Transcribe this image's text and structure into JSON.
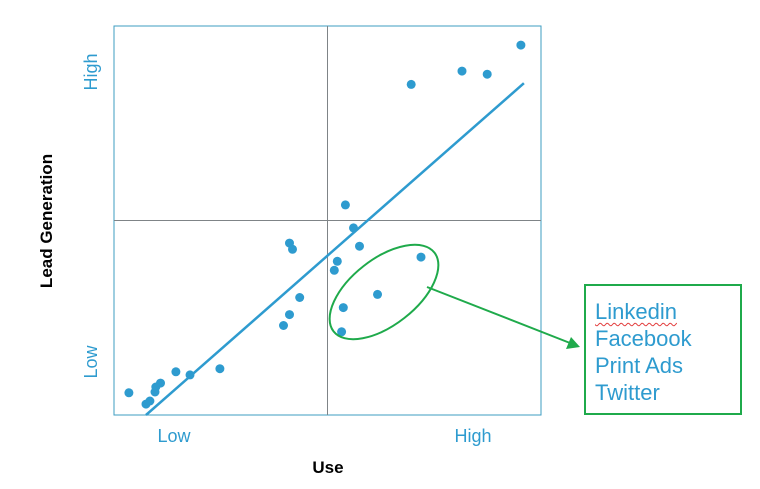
{
  "chart_data": {
    "type": "scatter",
    "title": "",
    "xlabel": "Use",
    "ylabel": "Lead Generation",
    "xlim": [
      0,
      100
    ],
    "ylim": [
      0,
      100
    ],
    "x_tick_labels": [
      "Low",
      "High"
    ],
    "y_tick_labels": [
      "Low",
      "High"
    ],
    "quadrant_split": {
      "x": 50,
      "y": 50
    },
    "grid": false,
    "points": [
      {
        "x": 3.5,
        "y": 5.7
      },
      {
        "x": 7.5,
        "y": 2.8
      },
      {
        "x": 8.4,
        "y": 3.6
      },
      {
        "x": 9.6,
        "y": 5.9
      },
      {
        "x": 9.8,
        "y": 7.2
      },
      {
        "x": 10.9,
        "y": 8.2
      },
      {
        "x": 14.5,
        "y": 11.1
      },
      {
        "x": 17.8,
        "y": 10.3
      },
      {
        "x": 24.8,
        "y": 11.9
      },
      {
        "x": 39.7,
        "y": 23.0
      },
      {
        "x": 41.1,
        "y": 25.8
      },
      {
        "x": 43.5,
        "y": 30.2
      },
      {
        "x": 41.1,
        "y": 44.2
      },
      {
        "x": 41.8,
        "y": 42.6
      },
      {
        "x": 51.6,
        "y": 37.2
      },
      {
        "x": 52.3,
        "y": 39.5
      },
      {
        "x": 53.3,
        "y": 21.4
      },
      {
        "x": 53.7,
        "y": 27.6
      },
      {
        "x": 54.2,
        "y": 54.0
      },
      {
        "x": 56.1,
        "y": 48.1
      },
      {
        "x": 57.5,
        "y": 43.4
      },
      {
        "x": 61.7,
        "y": 31.0
      },
      {
        "x": 71.9,
        "y": 40.6
      },
      {
        "x": 69.6,
        "y": 85.0
      },
      {
        "x": 81.5,
        "y": 88.4
      },
      {
        "x": 87.4,
        "y": 87.6
      },
      {
        "x": 95.3,
        "y": 95.1
      }
    ],
    "trendline": {
      "from": [
        7.5,
        0.0
      ],
      "to": [
        96.0,
        85.3
      ]
    },
    "colors": {
      "points": "#2e9bcf",
      "trendline": "#2e9bcf",
      "frame": "#3e9cc2",
      "highlight": "#1faa4b"
    }
  },
  "callout": {
    "items": [
      "Linkedin",
      "Facebook",
      "Print Ads",
      "Twitter"
    ]
  }
}
